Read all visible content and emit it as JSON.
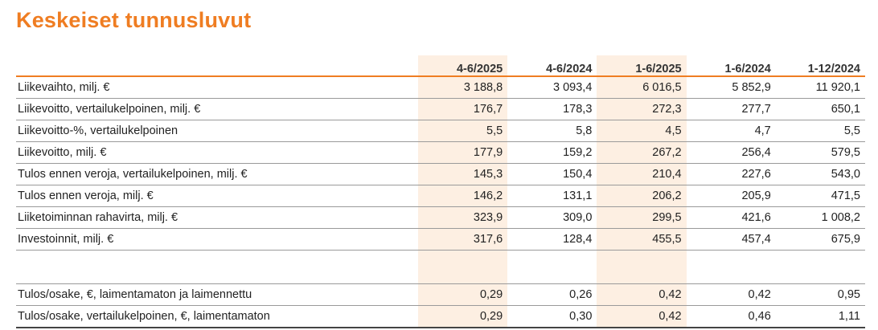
{
  "title": "Keskeiset tunnusluvut",
  "colors": {
    "accent": "#ef7d22",
    "highlight": "#fdefe2"
  },
  "columns": [
    "4-6/2025",
    "4-6/2024",
    "1-6/2025",
    "1-6/2024",
    "1-12/2024"
  ],
  "rows": [
    {
      "label": "Liikevaihto, milj. €",
      "values": [
        "3 188,8",
        "3 093,4",
        "6 016,5",
        "5 852,9",
        "11 920,1"
      ]
    },
    {
      "label": "Liikevoitto, vertailukelpoinen, milj. €",
      "values": [
        "176,7",
        "178,3",
        "272,3",
        "277,7",
        "650,1"
      ]
    },
    {
      "label": "Liikevoitto-%, vertailukelpoinen",
      "values": [
        "5,5",
        "5,8",
        "4,5",
        "4,7",
        "5,5"
      ]
    },
    {
      "label": "Liikevoitto, milj. €",
      "values": [
        "177,9",
        "159,2",
        "267,2",
        "256,4",
        "579,5"
      ]
    },
    {
      "label": "Tulos ennen veroja, vertailukelpoinen, milj. €",
      "values": [
        "145,3",
        "150,4",
        "210,4",
        "227,6",
        "543,0"
      ]
    },
    {
      "label": "Tulos ennen veroja, milj. €",
      "values": [
        "146,2",
        "131,1",
        "206,2",
        "205,9",
        "471,5"
      ]
    },
    {
      "label": "Liiketoiminnan rahavirta, milj. €",
      "values": [
        "323,9",
        "309,0",
        "299,5",
        "421,6",
        "1 008,2"
      ]
    },
    {
      "label": "Investoinnit, milj. €",
      "values": [
        "317,6",
        "128,4",
        "455,5",
        "457,4",
        "675,9"
      ]
    }
  ],
  "rows2": [
    {
      "label": "Tulos/osake, €, laimentamaton ja laimennettu",
      "values": [
        "0,29",
        "0,26",
        "0,42",
        "0,42",
        "0,95"
      ]
    },
    {
      "label": "Tulos/osake, vertailukelpoinen, €, laimentamaton",
      "values": [
        "0,29",
        "0,30",
        "0,42",
        "0,46",
        "1,11"
      ]
    }
  ]
}
